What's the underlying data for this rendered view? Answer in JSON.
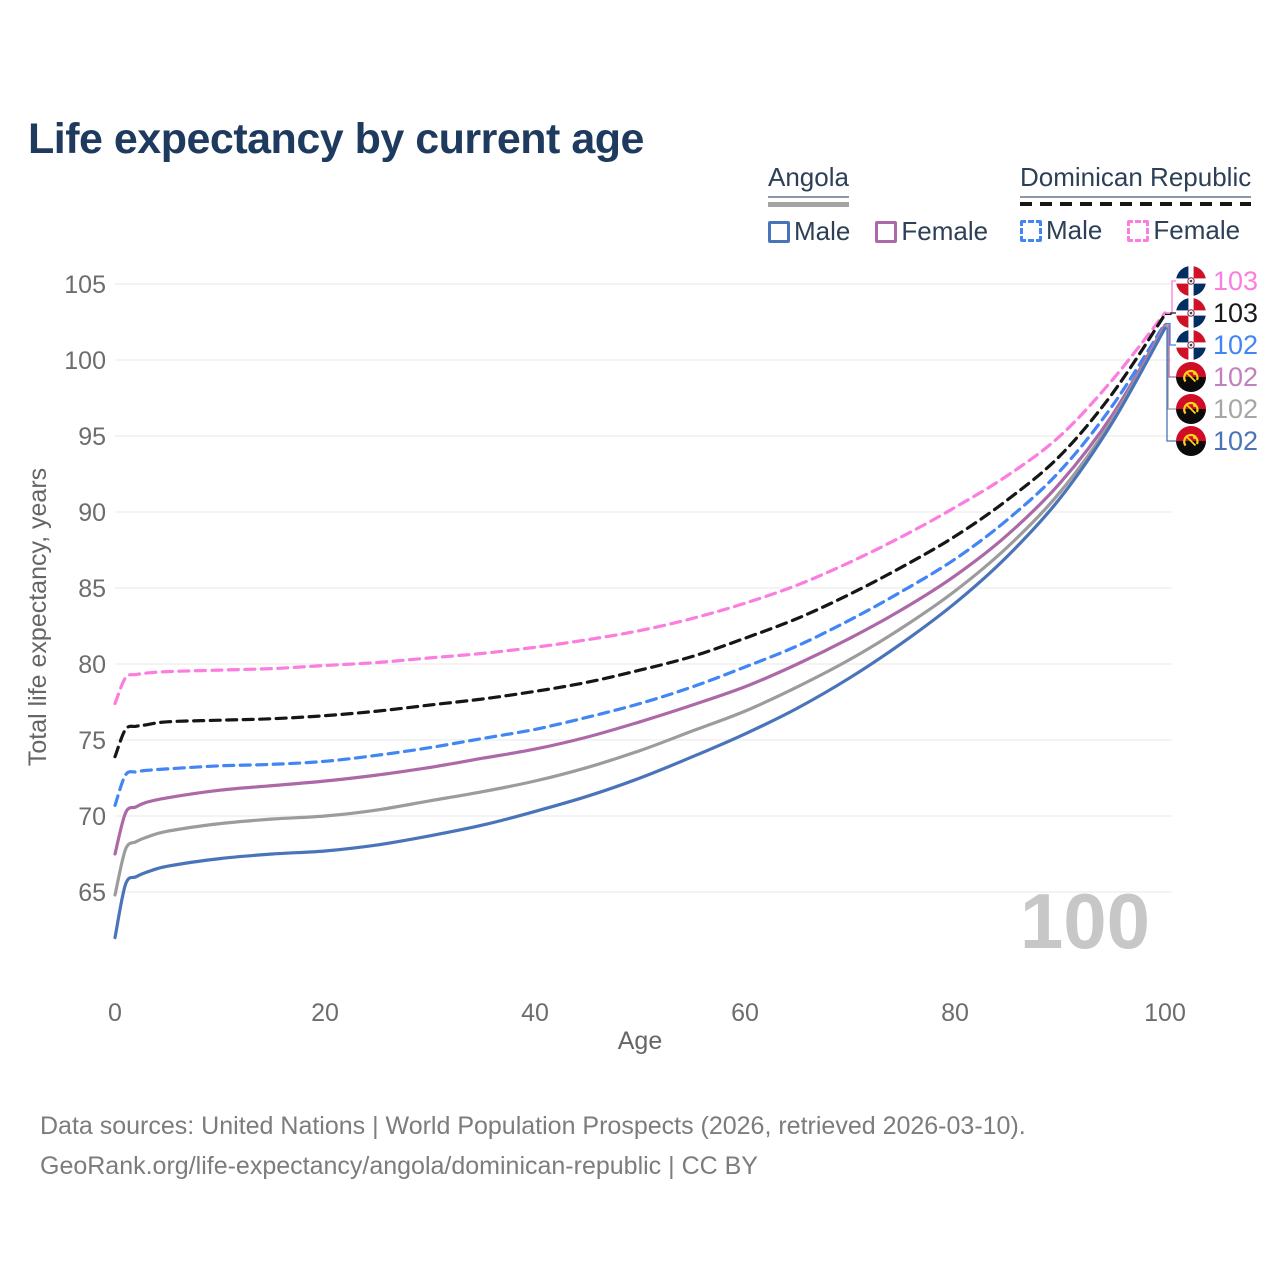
{
  "page": {
    "title": "Life expectancy by current age"
  },
  "legend": {
    "angola": {
      "title": "Angola",
      "male_label": "Male",
      "female_label": "Female"
    },
    "dominican_republic": {
      "title": "Dominican Republic",
      "male_label": "Male",
      "female_label": "Female"
    }
  },
  "watermark": "100",
  "footer": {
    "line1": "Data sources: United Nations | World Population Prospects (2026, retrieved 2026-03-10).",
    "line2": "GeoRank.org/life-expectancy/angola/dominican-republic | CC BY"
  },
  "chart_data": {
    "type": "line",
    "title": "Life expectancy by current age",
    "xlabel": "Age",
    "ylabel": "Total life expectancy, years",
    "xlim": [
      0,
      100
    ],
    "ylim": [
      62,
      105
    ],
    "xticks": [
      0,
      20,
      40,
      60,
      80,
      100
    ],
    "yticks": [
      65,
      70,
      75,
      80,
      85,
      90,
      95,
      100,
      105
    ],
    "grid": "horizontal",
    "legend_position": "top-right",
    "colors": {
      "grid": "#ececec",
      "tick": "#6d6d6d",
      "axis_label": "#666666",
      "watermark": "#c7c7c7",
      "title": "#1e3a5f",
      "legend_text": "#2e4057"
    },
    "ages": [
      0,
      1,
      2,
      3,
      5,
      10,
      15,
      20,
      25,
      30,
      35,
      40,
      45,
      50,
      55,
      60,
      65,
      70,
      75,
      80,
      85,
      90,
      95,
      100
    ],
    "series": [
      {
        "name": "Dominican Republic Female",
        "country": "Dominican Republic",
        "sex": "Female",
        "style": "dashed",
        "color": "#fb7de0",
        "label_color": "#fb7de0",
        "end_label": "103",
        "values": [
          77.4,
          79.1,
          79.3,
          79.4,
          79.5,
          79.6,
          79.7,
          79.9,
          80.1,
          80.4,
          80.7,
          81.1,
          81.6,
          82.2,
          83.0,
          84.0,
          85.2,
          86.7,
          88.4,
          90.3,
          92.4,
          95.0,
          98.7,
          103.1
        ]
      },
      {
        "name": "Dominican Republic All",
        "country": "Dominican Republic",
        "sex": "All",
        "style": "dashed",
        "color": "#161616",
        "label_color": "#1a1a1a",
        "end_label": "103",
        "values": [
          73.9,
          75.7,
          75.9,
          76.0,
          76.2,
          76.3,
          76.4,
          76.6,
          76.9,
          77.3,
          77.7,
          78.2,
          78.8,
          79.6,
          80.5,
          81.7,
          83.0,
          84.6,
          86.4,
          88.4,
          90.8,
          93.7,
          97.8,
          103.0
        ]
      },
      {
        "name": "Dominican Republic Male",
        "country": "Dominican Republic",
        "sex": "Male",
        "style": "dashed",
        "color": "#4285f4",
        "label_color": "#4285f4",
        "end_label": "102",
        "values": [
          70.7,
          72.7,
          72.9,
          73.0,
          73.1,
          73.3,
          73.4,
          73.6,
          74.0,
          74.5,
          75.1,
          75.7,
          76.5,
          77.4,
          78.5,
          79.8,
          81.2,
          82.9,
          84.8,
          86.9,
          89.5,
          92.7,
          97.0,
          102.4
        ]
      },
      {
        "name": "Angola Female",
        "country": "Angola",
        "sex": "Female",
        "style": "solid",
        "color": "#ac68a7",
        "label_color": "#c181ba",
        "end_label": "102",
        "values": [
          67.5,
          70.2,
          70.6,
          70.9,
          71.2,
          71.7,
          72.0,
          72.3,
          72.7,
          73.2,
          73.8,
          74.4,
          75.2,
          76.2,
          77.3,
          78.5,
          80.0,
          81.7,
          83.6,
          85.8,
          88.5,
          91.9,
          96.4,
          102.3
        ]
      },
      {
        "name": "Angola All",
        "country": "Angola",
        "sex": "All",
        "style": "solid",
        "color": "#9c9c9c",
        "label_color": "#a6a6a6",
        "end_label": "102",
        "values": [
          64.8,
          67.8,
          68.3,
          68.6,
          69.0,
          69.5,
          69.8,
          70.0,
          70.4,
          71.0,
          71.6,
          72.3,
          73.2,
          74.3,
          75.6,
          76.9,
          78.5,
          80.3,
          82.4,
          84.8,
          87.7,
          91.3,
          96.1,
          102.2
        ]
      },
      {
        "name": "Angola Male",
        "country": "Angola",
        "sex": "Male",
        "style": "solid",
        "color": "#4a74b9",
        "label_color": "#4a74b9",
        "end_label": "102",
        "values": [
          62.0,
          65.5,
          66.0,
          66.3,
          66.7,
          67.2,
          67.5,
          67.7,
          68.1,
          68.7,
          69.4,
          70.3,
          71.3,
          72.5,
          73.9,
          75.4,
          77.1,
          79.1,
          81.4,
          84.0,
          87.1,
          90.9,
          95.9,
          102.1
        ]
      }
    ],
    "end_labels": [
      {
        "flag": "Dominican Republic",
        "value": "103",
        "color": "#fb7de0"
      },
      {
        "flag": "Dominican Republic",
        "value": "103",
        "color": "#1a1a1a"
      },
      {
        "flag": "Dominican Republic",
        "value": "102",
        "color": "#4285f4"
      },
      {
        "flag": "Angola",
        "value": "102",
        "color": "#c181ba"
      },
      {
        "flag": "Angola",
        "value": "102",
        "color": "#a6a6a6"
      },
      {
        "flag": "Angola",
        "value": "102",
        "color": "#4a74b9"
      }
    ]
  }
}
